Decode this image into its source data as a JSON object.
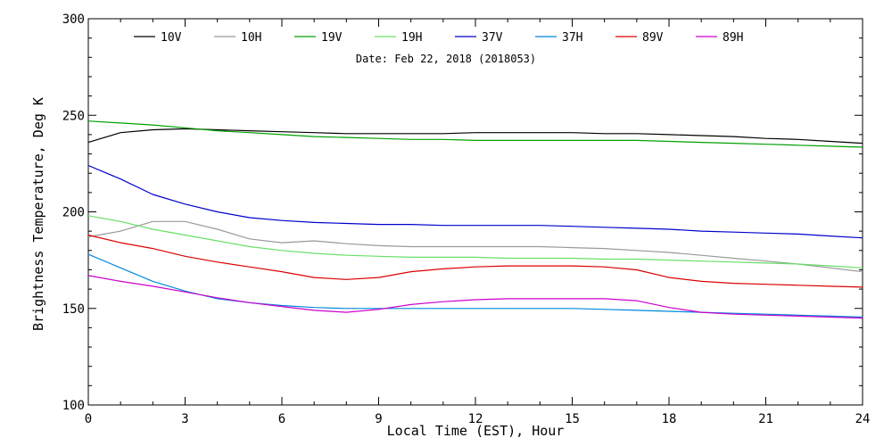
{
  "chart_data": {
    "type": "line",
    "title": "",
    "date_label": "Date: Feb 22, 2018 (2018053)",
    "xlabel": "Local Time (EST), Hour",
    "ylabel": "Brightness Temperature, Deg K",
    "xlim": [
      0,
      24
    ],
    "ylim": [
      100,
      300
    ],
    "xticks": [
      0,
      3,
      6,
      9,
      12,
      15,
      18,
      21,
      24
    ],
    "yticks": [
      100,
      150,
      200,
      250,
      300
    ],
    "grid": false,
    "legend_position": "top",
    "x": [
      0,
      1,
      2,
      3,
      4,
      5,
      6,
      7,
      8,
      9,
      10,
      11,
      12,
      13,
      14,
      15,
      16,
      17,
      18,
      19,
      20,
      21,
      22,
      23,
      24
    ],
    "series": [
      {
        "name": "10V",
        "color": "#000000",
        "values": [
          236,
          241,
          242.5,
          243,
          242.5,
          242,
          241.5,
          241,
          240.5,
          240.5,
          240.5,
          240.5,
          241,
          241,
          241,
          241,
          240.5,
          240.5,
          240,
          239.5,
          239,
          238,
          237.5,
          236.5,
          235.5
        ]
      },
      {
        "name": "10H",
        "color": "#999999",
        "values": [
          187,
          190,
          195,
          195,
          191,
          186,
          184,
          185,
          183.5,
          182.5,
          182,
          182,
          182,
          182,
          182,
          181.5,
          181,
          180,
          179,
          177.5,
          176,
          174.5,
          173,
          171,
          169
        ]
      },
      {
        "name": "19V",
        "color": "#00a000",
        "values": [
          247,
          246,
          245,
          243.5,
          242,
          241,
          240,
          239,
          238.5,
          238,
          237.5,
          237.5,
          237,
          237,
          237,
          237,
          237,
          237,
          236.5,
          236,
          235.5,
          235,
          234.5,
          234,
          233.5
        ]
      },
      {
        "name": "19H",
        "color": "#66e066",
        "values": [
          198,
          195,
          191,
          188,
          185,
          182,
          180,
          178.5,
          177.5,
          177,
          176.5,
          176.5,
          176.5,
          176,
          176,
          176,
          175.5,
          175.5,
          175,
          174.5,
          174,
          173.5,
          173,
          172,
          171
        ]
      },
      {
        "name": "37V",
        "color": "#0000cc",
        "values": [
          224,
          217,
          209,
          204,
          200,
          197,
          195.5,
          194.5,
          194,
          193.5,
          193.5,
          193,
          193,
          193,
          193,
          192.5,
          192,
          191.5,
          191,
          190,
          189.5,
          189,
          188.5,
          187.5,
          186.5
        ]
      },
      {
        "name": "37H",
        "color": "#0088dd",
        "values": [
          178,
          171,
          164,
          159,
          155,
          153,
          151.5,
          150.5,
          150,
          150,
          150,
          150,
          150,
          150,
          150,
          150,
          149.5,
          149,
          148.5,
          148,
          147.5,
          147,
          146.5,
          146,
          145.5
        ]
      },
      {
        "name": "89V",
        "color": "#dd0000",
        "values": [
          188,
          184,
          181,
          177,
          174,
          171.5,
          169,
          166,
          165,
          166,
          169,
          170.5,
          171.5,
          172,
          172,
          172,
          171.5,
          170,
          166,
          164,
          163,
          162.5,
          162,
          161.5,
          161
        ]
      },
      {
        "name": "89H",
        "color": "#cc00cc",
        "values": [
          167,
          164,
          161.5,
          158.5,
          155.5,
          153,
          151,
          149,
          148,
          149.5,
          152,
          153.5,
          154.5,
          155,
          155,
          155,
          155,
          154,
          150.5,
          148,
          147,
          146.5,
          146,
          145.5,
          145
        ]
      }
    ]
  }
}
